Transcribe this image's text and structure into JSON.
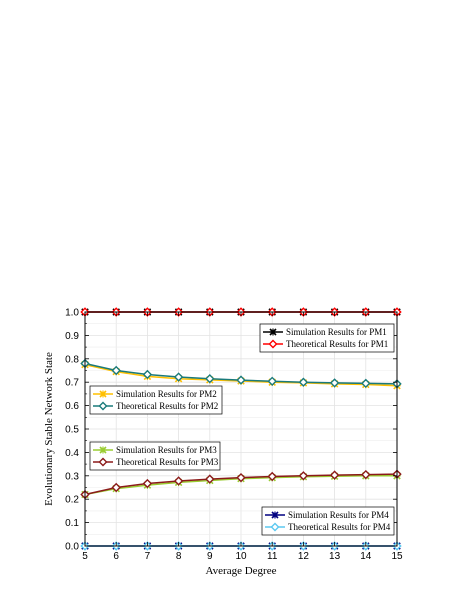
{
  "chart_data": {
    "type": "line",
    "xlabel": "Average Degree",
    "ylabel": "Evolutionary Stable Network State",
    "xlim": [
      5,
      15
    ],
    "ylim": [
      0.0,
      1.0
    ],
    "xticks": [
      "5",
      "6",
      "7",
      "8",
      "9",
      "10",
      "11",
      "12",
      "13",
      "14",
      "15"
    ],
    "yticks": [
      "0.0",
      "0.1",
      "0.2",
      "0.3",
      "0.4",
      "0.5",
      "0.6",
      "0.7",
      "0.8",
      "0.9",
      "1.0"
    ],
    "grid": true,
    "x": [
      5,
      6,
      7,
      8,
      9,
      10,
      11,
      12,
      13,
      14,
      15
    ],
    "series": [
      {
        "name": "Simulation Results for PM1",
        "marker": "star",
        "color": "#000000",
        "values": [
          1.0,
          1.0,
          1.0,
          1.0,
          1.0,
          1.0,
          1.0,
          1.0,
          1.0,
          1.0,
          1.0
        ]
      },
      {
        "name": "Theoretical Results for PM1",
        "marker": "diamond",
        "color": "#ff0000",
        "values": [
          1.0,
          1.0,
          1.0,
          1.0,
          1.0,
          1.0,
          1.0,
          1.0,
          1.0,
          1.0,
          1.0
        ]
      },
      {
        "name": "Simulation Results for PM2",
        "marker": "star",
        "color": "#ffc000",
        "values": [
          0.775,
          0.745,
          0.725,
          0.715,
          0.71,
          0.705,
          0.7,
          0.697,
          0.693,
          0.69,
          0.685
        ]
      },
      {
        "name": "Theoretical Results for PM2",
        "marker": "diamond",
        "color": "#1a7a7a",
        "values": [
          0.78,
          0.75,
          0.733,
          0.722,
          0.715,
          0.709,
          0.704,
          0.7,
          0.697,
          0.695,
          0.693
        ]
      },
      {
        "name": "Simulation Results for PM3",
        "marker": "star",
        "color": "#9acd32",
        "values": [
          0.22,
          0.245,
          0.26,
          0.272,
          0.28,
          0.288,
          0.292,
          0.296,
          0.298,
          0.3,
          0.3
        ]
      },
      {
        "name": "Theoretical Results for PM3",
        "marker": "diamond",
        "color": "#8b1a1a",
        "values": [
          0.22,
          0.25,
          0.267,
          0.278,
          0.286,
          0.292,
          0.297,
          0.3,
          0.303,
          0.305,
          0.307
        ]
      },
      {
        "name": "Simulation Results for PM4",
        "marker": "star",
        "color": "#000080",
        "values": [
          0,
          0,
          0,
          0,
          0,
          0,
          0,
          0,
          0,
          0,
          0
        ]
      },
      {
        "name": "Theoretical Results for PM4",
        "marker": "diamond",
        "color": "#5bc8f0",
        "values": [
          0,
          0,
          0,
          0,
          0,
          0,
          0,
          0,
          0,
          0,
          0
        ]
      }
    ],
    "legends": [
      {
        "entries": [
          0,
          1
        ],
        "placement": "top-right"
      },
      {
        "entries": [
          2,
          3
        ],
        "placement": "middle-left"
      },
      {
        "entries": [
          4,
          5
        ],
        "placement": "lower-left"
      },
      {
        "entries": [
          6,
          7
        ],
        "placement": "bottom-right"
      }
    ]
  }
}
